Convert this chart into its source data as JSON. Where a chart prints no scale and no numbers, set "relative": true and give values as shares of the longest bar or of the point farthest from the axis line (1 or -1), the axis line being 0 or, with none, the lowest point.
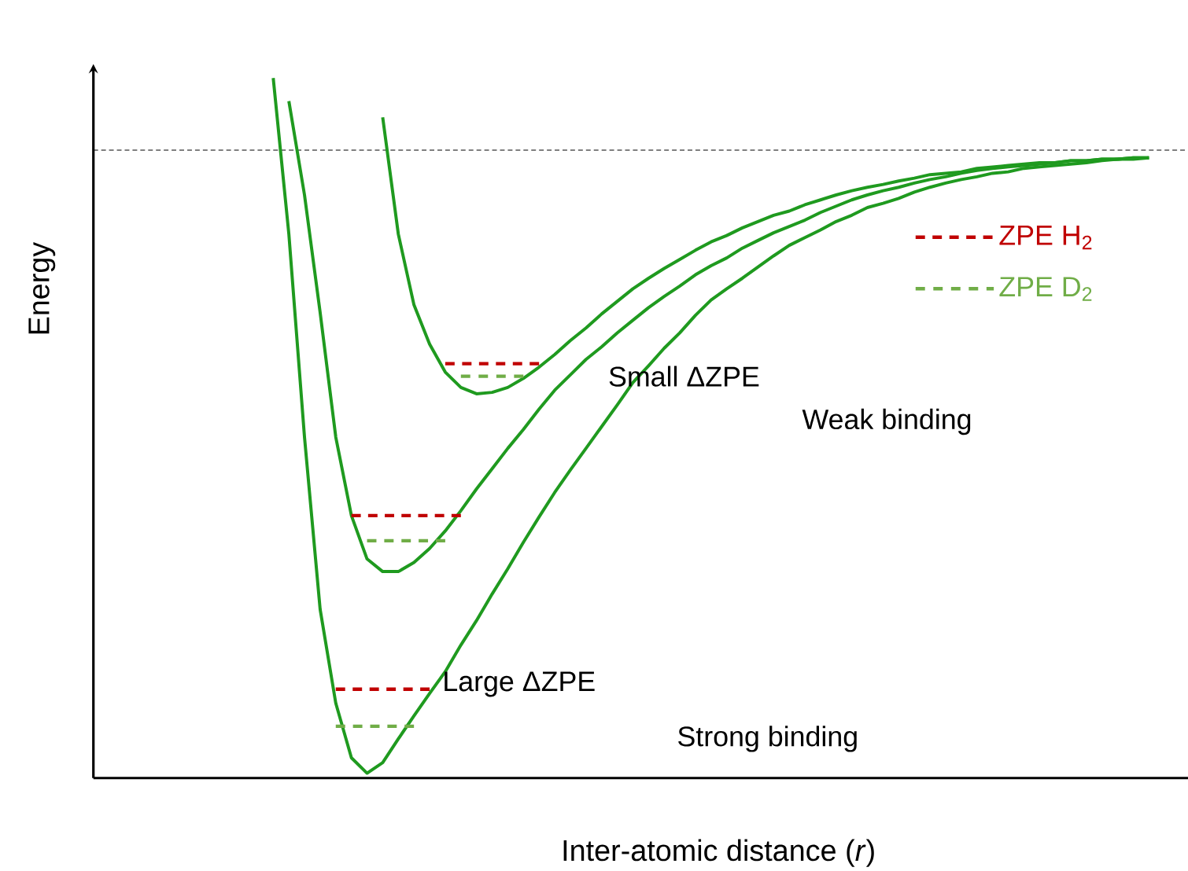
{
  "chart_data": {
    "type": "line",
    "relative": true,
    "xlabel": "Inter-atomic distance (*r*)",
    "ylabel": "Energy",
    "tick_labels": false,
    "legend": "right",
    "categories": [
      null,
      null,
      null,
      null,
      null,
      null,
      null,
      null,
      null,
      null,
      null,
      null,
      null,
      null,
      null,
      null,
      null,
      null,
      null,
      null,
      null,
      null,
      null,
      null,
      null,
      null,
      null,
      null,
      null,
      null,
      null,
      null,
      null,
      null,
      null,
      null,
      null,
      null,
      null,
      null,
      null,
      null,
      null,
      null,
      null,
      null,
      null,
      null,
      null,
      null,
      null,
      null,
      null,
      null,
      null,
      null,
      null,
      null,
      null,
      null,
      null,
      null,
      null,
      null,
      null,
      null,
      null,
      null,
      null,
      null
    ],
    "annotations": [
      "Small ΔZPE",
      "Weak binding",
      "Large ΔZPE",
      "Strong binding"
    ],
    "ref_lines": [
      {
        "axis": "y",
        "value": 0.897,
        "color": "#000000",
        "line_style": "dashed"
      }
    ],
    "series": [
      {
        "color": "#1f9a1f",
        "line_style": "solid",
        "values": [
          null,
          null,
          null,
          null,
          null,
          null,
          null,
          null,
          null,
          null,
          null,
          1.0,
          0.777,
          0.487,
          0.241,
          0.107,
          0.029,
          0.007,
          0.022,
          0.056,
          0.089,
          0.121,
          0.152,
          0.19,
          0.225,
          0.263,
          0.299,
          0.337,
          0.373,
          0.408,
          0.44,
          0.471,
          0.502,
          0.533,
          0.565,
          0.589,
          0.614,
          0.636,
          0.661,
          0.683,
          0.699,
          0.714,
          0.73,
          0.746,
          0.761,
          0.772,
          0.783,
          0.795,
          0.804,
          0.815,
          0.821,
          0.828,
          0.837,
          0.844,
          0.85,
          0.855,
          0.859,
          0.864,
          0.866,
          0.871,
          0.873,
          0.875,
          0.877,
          0.879,
          0.882,
          0.884,
          0.884,
          0.886,
          null,
          null
        ]
      },
      {
        "color": "#1f9a1f",
        "line_style": "solid",
        "values": [
          null,
          null,
          null,
          null,
          null,
          null,
          null,
          null,
          null,
          null,
          null,
          null,
          0.967,
          0.833,
          0.665,
          0.487,
          0.375,
          0.313,
          0.295,
          0.295,
          0.308,
          0.328,
          0.353,
          0.382,
          0.413,
          0.442,
          0.471,
          0.498,
          0.527,
          0.554,
          0.576,
          0.598,
          0.616,
          0.636,
          0.654,
          0.672,
          0.688,
          0.703,
          0.719,
          0.732,
          0.743,
          0.757,
          0.768,
          0.779,
          0.788,
          0.797,
          0.808,
          0.817,
          0.826,
          0.833,
          0.839,
          0.844,
          0.85,
          0.855,
          0.859,
          0.864,
          0.868,
          0.871,
          0.873,
          0.875,
          0.877,
          0.879,
          0.882,
          0.882,
          0.884,
          0.884,
          0.886,
          0.886,
          null,
          null
        ]
      },
      {
        "color": "#1f9a1f",
        "line_style": "solid",
        "values": [
          null,
          null,
          null,
          null,
          null,
          null,
          null,
          null,
          null,
          null,
          null,
          null,
          null,
          null,
          null,
          null,
          null,
          null,
          0.944,
          0.777,
          0.676,
          0.62,
          0.58,
          0.558,
          0.549,
          0.551,
          0.558,
          0.571,
          0.587,
          0.605,
          0.625,
          0.643,
          0.663,
          0.681,
          0.699,
          0.714,
          0.728,
          0.741,
          0.754,
          0.766,
          0.775,
          0.786,
          0.795,
          0.804,
          0.81,
          0.819,
          0.826,
          0.833,
          0.839,
          0.844,
          0.848,
          0.853,
          0.857,
          0.862,
          0.864,
          0.866,
          0.871,
          0.873,
          0.875,
          0.877,
          0.879,
          0.879,
          0.882,
          0.882,
          0.884,
          0.884,
          0.886,
          0.886,
          null,
          null
        ]
      },
      {
        "name": "ZPE H$_{2}$",
        "color": "#c00000",
        "line_style": "dashed",
        "values": [
          null,
          null,
          null,
          null,
          null,
          null,
          null,
          null,
          null,
          null,
          null,
          null,
          null,
          null,
          null,
          null,
          null,
          null,
          null,
          null,
          null,
          null,
          0.592,
          0.592,
          0.592,
          0.592,
          0.592,
          0.592,
          0.592,
          null,
          null,
          null,
          null,
          null,
          null,
          null,
          null,
          null,
          null,
          null,
          null,
          null,
          null,
          null,
          null,
          null,
          null,
          null,
          null,
          null,
          null,
          null,
          null,
          null,
          null,
          null,
          null,
          null,
          null,
          null,
          null,
          null,
          null,
          null,
          null,
          null,
          null,
          null,
          null,
          null
        ]
      },
      {
        "name": "ZPE D$_{2}$",
        "color": "#70ad47",
        "line_style": "dashed",
        "values": [
          null,
          null,
          null,
          null,
          null,
          null,
          null,
          null,
          null,
          null,
          null,
          null,
          null,
          null,
          null,
          null,
          null,
          null,
          null,
          null,
          null,
          null,
          null,
          0.574,
          0.574,
          0.574,
          0.574,
          0.574,
          null,
          null,
          null,
          null,
          null,
          null,
          null,
          null,
          null,
          null,
          null,
          null,
          null,
          null,
          null,
          null,
          null,
          null,
          null,
          null,
          null,
          null,
          null,
          null,
          null,
          null,
          null,
          null,
          null,
          null,
          null,
          null,
          null,
          null,
          null,
          null,
          null,
          null,
          null,
          null,
          null,
          null
        ]
      },
      {
        "color": "#c00000",
        "line_style": "dashed",
        "values": [
          null,
          null,
          null,
          null,
          null,
          null,
          null,
          null,
          null,
          null,
          null,
          null,
          null,
          null,
          null,
          null,
          0.375,
          0.375,
          0.375,
          0.375,
          0.375,
          0.375,
          0.375,
          0.375,
          null,
          null,
          null,
          null,
          null,
          null,
          null,
          null,
          null,
          null,
          null,
          null,
          null,
          null,
          null,
          null,
          null,
          null,
          null,
          null,
          null,
          null,
          null,
          null,
          null,
          null,
          null,
          null,
          null,
          null,
          null,
          null,
          null,
          null,
          null,
          null,
          null,
          null,
          null,
          null,
          null,
          null,
          null,
          null,
          null,
          null
        ]
      },
      {
        "color": "#70ad47",
        "line_style": "dashed",
        "values": [
          null,
          null,
          null,
          null,
          null,
          null,
          null,
          null,
          null,
          null,
          null,
          null,
          null,
          null,
          null,
          null,
          null,
          0.339,
          0.339,
          0.339,
          0.339,
          0.339,
          0.339,
          null,
          null,
          null,
          null,
          null,
          null,
          null,
          null,
          null,
          null,
          null,
          null,
          null,
          null,
          null,
          null,
          null,
          null,
          null,
          null,
          null,
          null,
          null,
          null,
          null,
          null,
          null,
          null,
          null,
          null,
          null,
          null,
          null,
          null,
          null,
          null,
          null,
          null,
          null,
          null,
          null,
          null,
          null,
          null,
          null,
          null,
          null
        ]
      },
      {
        "color": "#c00000",
        "line_style": "dashed",
        "values": [
          null,
          null,
          null,
          null,
          null,
          null,
          null,
          null,
          null,
          null,
          null,
          null,
          null,
          null,
          null,
          0.127,
          0.127,
          0.127,
          0.127,
          0.127,
          0.127,
          0.127,
          null,
          null,
          null,
          null,
          null,
          null,
          null,
          null,
          null,
          null,
          null,
          null,
          null,
          null,
          null,
          null,
          null,
          null,
          null,
          null,
          null,
          null,
          null,
          null,
          null,
          null,
          null,
          null,
          null,
          null,
          null,
          null,
          null,
          null,
          null,
          null,
          null,
          null,
          null,
          null,
          null,
          null,
          null,
          null,
          null,
          null,
          null,
          null
        ]
      },
      {
        "color": "#70ad47",
        "line_style": "dashed",
        "values": [
          null,
          null,
          null,
          null,
          null,
          null,
          null,
          null,
          null,
          null,
          null,
          null,
          null,
          null,
          null,
          0.074,
          0.074,
          0.074,
          0.074,
          0.074,
          0.074,
          null,
          null,
          null,
          null,
          null,
          null,
          null,
          null,
          null,
          null,
          null,
          null,
          null,
          null,
          null,
          null,
          null,
          null,
          null,
          null,
          null,
          null,
          null,
          null,
          null,
          null,
          null,
          null,
          null,
          null,
          null,
          null,
          null,
          null,
          null,
          null,
          null,
          null,
          null,
          null,
          null,
          null,
          null,
          null,
          null,
          null,
          null,
          null,
          null
        ]
      }
    ]
  }
}
